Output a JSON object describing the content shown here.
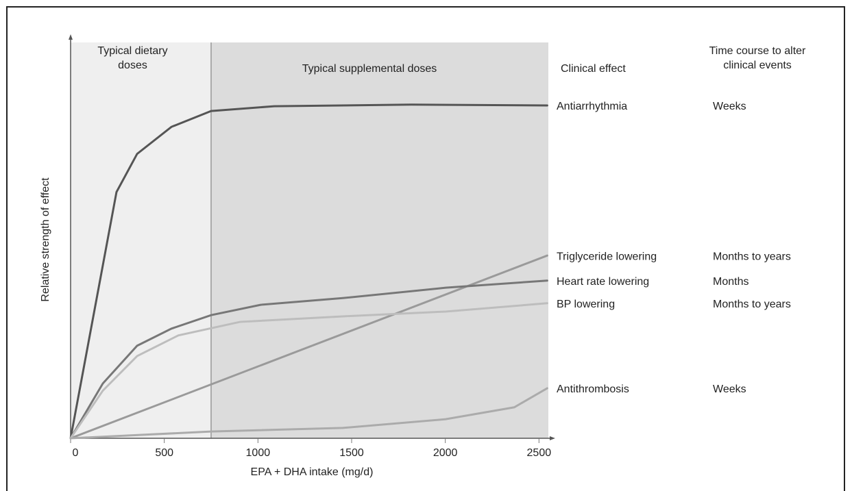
{
  "chart_data": {
    "type": "line",
    "x_label": "EPA + DHA intake (mg/d)",
    "y_label": "Relative strength of effect",
    "xlim": [
      0,
      2550
    ],
    "ylim": [
      0,
      100
    ],
    "xticks": [
      0,
      500,
      1000,
      1500,
      2000,
      2500
    ],
    "regions": [
      {
        "label": "Typical dietary doses",
        "from": 0,
        "to": 750,
        "color": "#efefef"
      },
      {
        "label": "Typical supplemental doses",
        "from": 750,
        "to": 2550,
        "color": "#dcdcdc"
      }
    ],
    "effect_header": "Clinical effect",
    "time_header": "Time course to alter clinical events",
    "series": [
      {
        "name": "Antiarrhythmia",
        "time_course": "Weeks",
        "color": "#555555",
        "x": [
          0,
          245,
          355,
          538,
          750,
          1087,
          1819,
          2544
        ],
        "values": [
          0,
          62,
          71.6,
          78.4,
          82.4,
          83.6,
          84,
          83.8
        ]
      },
      {
        "name": "Triglyceride lowering",
        "time_course": "Months to years",
        "color": "#9a9a9a",
        "x": [
          0,
          2544
        ],
        "values": [
          0,
          46
        ]
      },
      {
        "name": "Heart rate lowering",
        "time_course": "Months",
        "color": "#777777",
        "x": [
          0,
          172,
          355,
          538,
          750,
          1014,
          1453,
          2002,
          2544
        ],
        "values": [
          0,
          13.8,
          23.3,
          27.6,
          31,
          33.6,
          35.3,
          37.9,
          39.7
        ]
      },
      {
        "name": "BP lowering",
        "time_course": "Months to years",
        "color": "#bdbdbd",
        "x": [
          0,
          172,
          355,
          575,
          904,
          1453,
          2002,
          2544
        ],
        "values": [
          0,
          12,
          20.7,
          25.9,
          29.3,
          30.7,
          31.9,
          34
        ]
      },
      {
        "name": "Antithrombosis",
        "time_course": "Weeks",
        "color": "#ababab",
        "x": [
          0,
          750,
          1453,
          2002,
          2368,
          2544
        ],
        "values": [
          0,
          1.7,
          2.6,
          4.8,
          7.8,
          12.6
        ]
      }
    ]
  }
}
